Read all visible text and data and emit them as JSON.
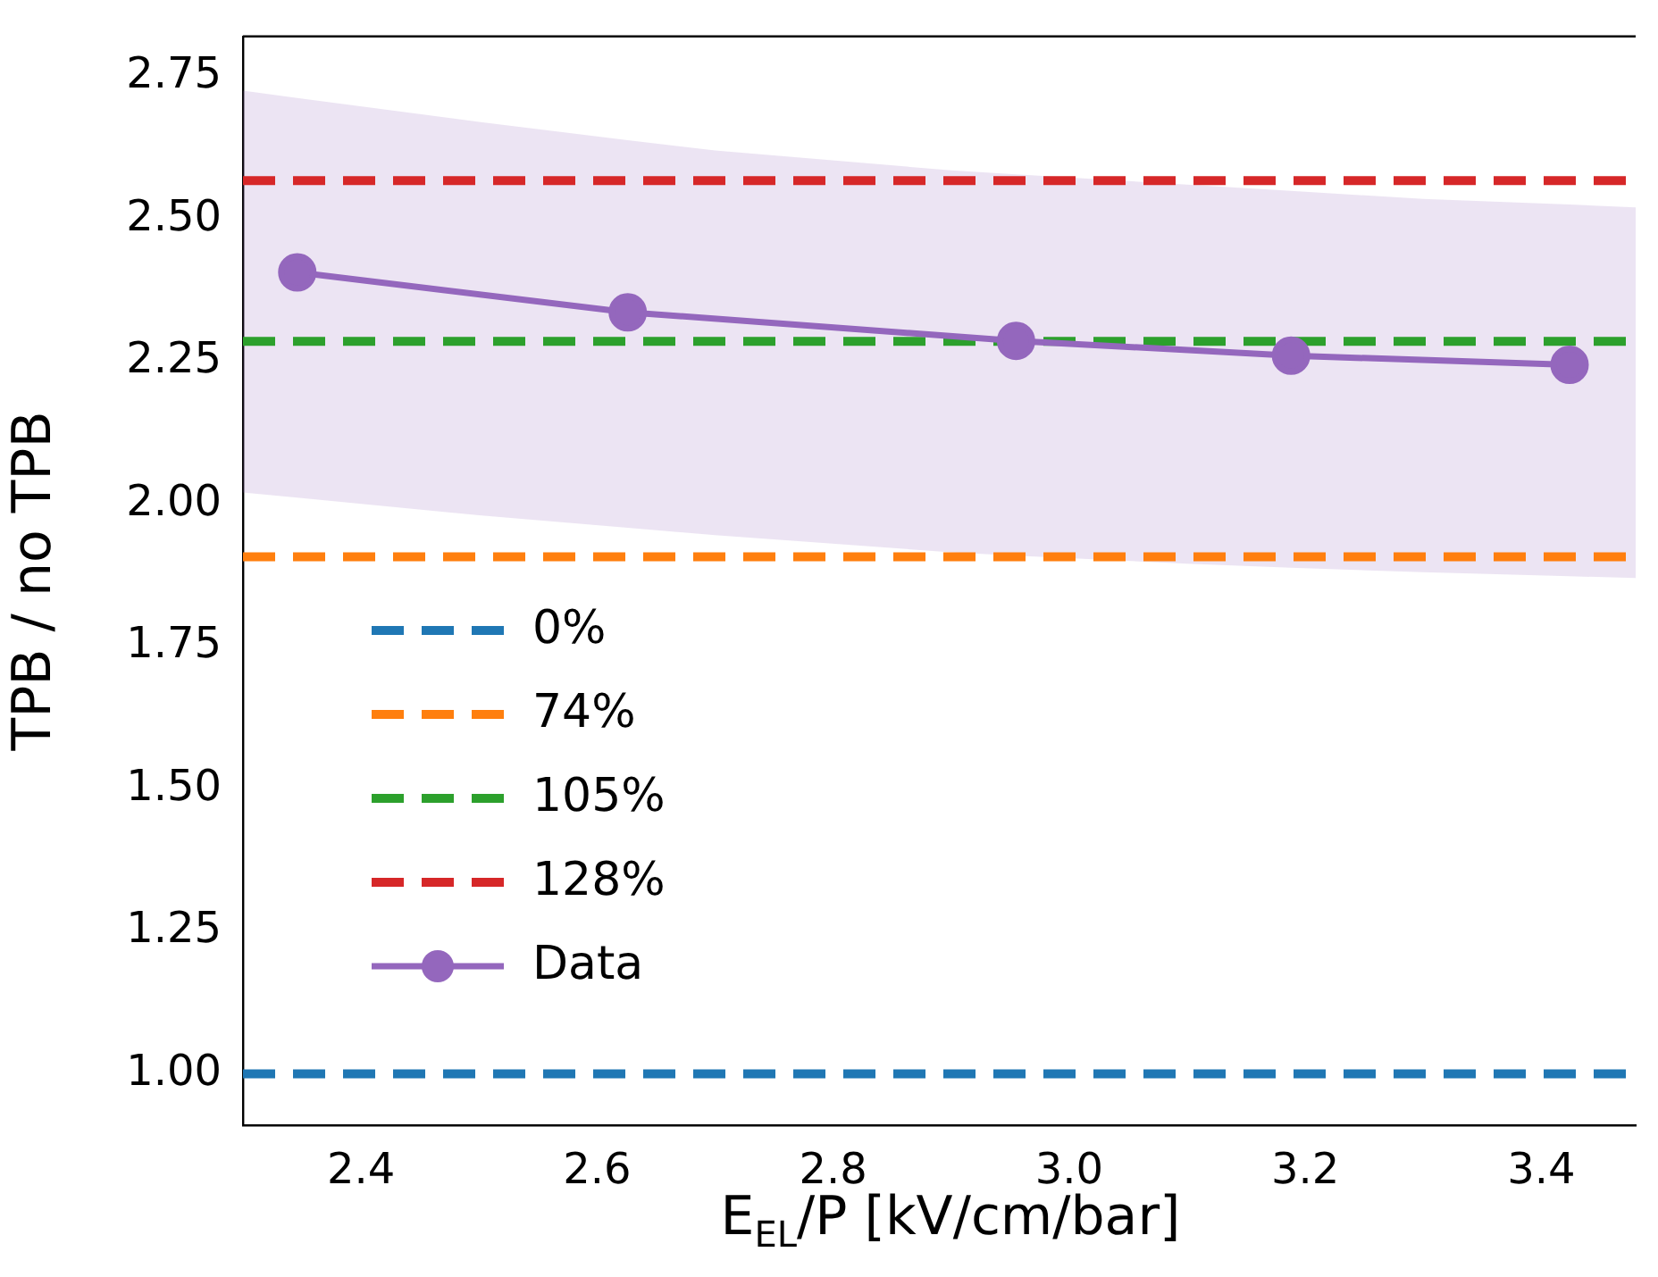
{
  "chart_data": {
    "type": "line",
    "xlabel": "E$_{EL}$/P [kV/cm/bar]",
    "ylabel": "TPB / no TPB",
    "xlim": [
      2.3,
      3.48
    ],
    "ylim": [
      0.91,
      2.82
    ],
    "xticks": [
      {
        "value": 2.4,
        "label": "2.4"
      },
      {
        "value": 2.6,
        "label": "2.6"
      },
      {
        "value": 2.8,
        "label": "2.8"
      },
      {
        "value": 3.0,
        "label": "3.0"
      },
      {
        "value": 3.2,
        "label": "3.2"
      },
      {
        "value": 3.4,
        "label": "3.4"
      }
    ],
    "yticks": [
      {
        "value": 1.0,
        "label": "1.00"
      },
      {
        "value": 1.25,
        "label": "1.25"
      },
      {
        "value": 1.5,
        "label": "1.50"
      },
      {
        "value": 1.75,
        "label": "1.75"
      },
      {
        "value": 2.0,
        "label": "2.00"
      },
      {
        "value": 2.25,
        "label": "2.25"
      },
      {
        "value": 2.5,
        "label": "2.50"
      },
      {
        "value": 2.75,
        "label": "2.75"
      }
    ],
    "series": [
      {
        "name": "0%",
        "color": "#1f77b4",
        "x": [
          2.3,
          3.48
        ],
        "values": [
          1.0,
          1.0
        ],
        "line_style": "dashed",
        "marker": "none"
      },
      {
        "name": "74%",
        "color": "#ff7f0e",
        "x": [
          2.3,
          3.48
        ],
        "values": [
          1.907,
          1.907
        ],
        "line_style": "dashed",
        "marker": "none"
      },
      {
        "name": "105%",
        "color": "#2ca02c",
        "x": [
          2.3,
          3.48
        ],
        "values": [
          2.285,
          2.285
        ],
        "line_style": "dashed",
        "marker": "none"
      },
      {
        "name": "128%",
        "color": "#d62728",
        "x": [
          2.3,
          3.48
        ],
        "values": [
          2.567,
          2.567
        ],
        "line_style": "dashed",
        "marker": "none"
      },
      {
        "name": "Data",
        "color": "#9467bd",
        "x": [
          2.3,
          2.346,
          2.5,
          2.626,
          2.7,
          2.9,
          2.955,
          3.1,
          3.188,
          3.3,
          3.424,
          3.48
        ],
        "values": [
          null,
          2.406,
          null,
          2.336,
          null,
          null,
          2.286,
          null,
          2.26,
          null,
          2.244,
          null
        ],
        "lower": [
          2.02,
          2.011,
          1.98,
          1.958,
          1.945,
          1.915,
          1.909,
          1.895,
          1.888,
          1.88,
          1.873,
          1.87
        ],
        "upper": [
          2.725,
          2.712,
          2.67,
          2.638,
          2.62,
          2.585,
          2.578,
          2.56,
          2.549,
          2.535,
          2.525,
          2.52
        ]
      }
    ],
    "marker": "circle",
    "line_style": "solid",
    "legend": "bottom left"
  }
}
